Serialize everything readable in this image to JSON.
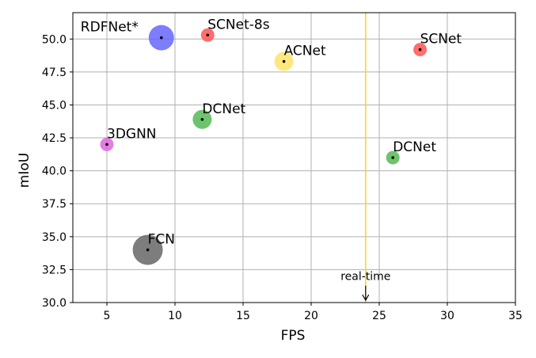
{
  "chart_data": {
    "type": "scatter",
    "xlabel": "FPS",
    "ylabel": "mIoU",
    "xlim": [
      2.5,
      35
    ],
    "ylim": [
      30,
      52
    ],
    "grid": true,
    "x_ticks": [
      "5",
      "10",
      "15",
      "20",
      "25",
      "30",
      "35"
    ],
    "x_tick_values": [
      5,
      10,
      15,
      20,
      25,
      30,
      35
    ],
    "y_ticks": [
      "30.0",
      "32.5",
      "35.0",
      "37.5",
      "40.0",
      "42.5",
      "45.0",
      "47.5",
      "50.0"
    ],
    "y_tick_values": [
      30,
      32.5,
      35,
      37.5,
      40,
      42.5,
      45,
      47.5,
      50
    ],
    "points": [
      {
        "label": "RDFNet*",
        "x": 9.0,
        "y": 50.1,
        "size": 4,
        "color": "#6666ff"
      },
      {
        "label": "SCNet-8s",
        "x": 12.4,
        "y": 50.3,
        "size": 2,
        "color": "#ff5555"
      },
      {
        "label": "ACNet",
        "x": 18.0,
        "y": 48.3,
        "size": 3,
        "color": "#ffe36a"
      },
      {
        "label": "SCNet",
        "x": 28.0,
        "y": 49.2,
        "size": 2,
        "color": "#ff5555"
      },
      {
        "label": "DCNet",
        "x": 12.0,
        "y": 43.9,
        "size": 3,
        "color": "#55b855"
      },
      {
        "label": "3DGNN",
        "x": 5.0,
        "y": 42.0,
        "size": 2,
        "color": "#dd66dd"
      },
      {
        "label": "DCNet",
        "x": 26.0,
        "y": 41.0,
        "size": 2,
        "color": "#55b855"
      },
      {
        "label": "FCN",
        "x": 8.0,
        "y": 34.0,
        "size": 5,
        "color": "#666666"
      }
    ],
    "reference_line": {
      "x": 24,
      "color": "#ffd700"
    },
    "annotation": {
      "text": "real-time",
      "x": 24,
      "y": 32.0,
      "arrow_to_y": 30.0
    }
  }
}
